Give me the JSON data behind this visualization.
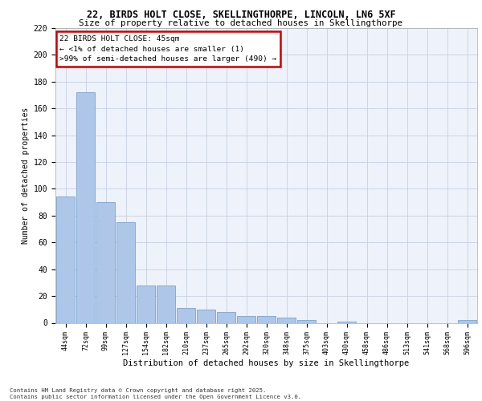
{
  "title1": "22, BIRDS HOLT CLOSE, SKELLINGTHORPE, LINCOLN, LN6 5XF",
  "title2": "Size of property relative to detached houses in Skellingthorpe",
  "xlabel": "Distribution of detached houses by size in Skellingthorpe",
  "ylabel": "Number of detached properties",
  "categories": [
    "44sqm",
    "72sqm",
    "99sqm",
    "127sqm",
    "154sqm",
    "182sqm",
    "210sqm",
    "237sqm",
    "265sqm",
    "292sqm",
    "320sqm",
    "348sqm",
    "375sqm",
    "403sqm",
    "430sqm",
    "458sqm",
    "486sqm",
    "513sqm",
    "541sqm",
    "568sqm",
    "596sqm"
  ],
  "values": [
    94,
    172,
    90,
    75,
    28,
    28,
    11,
    10,
    8,
    5,
    5,
    4,
    2,
    0,
    1,
    0,
    0,
    0,
    0,
    0,
    2
  ],
  "bar_color": "#aec6e8",
  "bar_edge_color": "#6699cc",
  "background_color": "#eef2fa",
  "grid_color": "#c8d0e0",
  "annotation_text": "22 BIRDS HOLT CLOSE: 45sqm\n← <1% of detached houses are smaller (1)\n>99% of semi-detached houses are larger (490) →",
  "annotation_box_color": "#ffffff",
  "annotation_box_edge": "#cc0000",
  "footer": "Contains HM Land Registry data © Crown copyright and database right 2025.\nContains public sector information licensed under the Open Government Licence v3.0.",
  "ylim": [
    0,
    220
  ],
  "yticks": [
    0,
    20,
    40,
    60,
    80,
    100,
    120,
    140,
    160,
    180,
    200,
    220
  ]
}
